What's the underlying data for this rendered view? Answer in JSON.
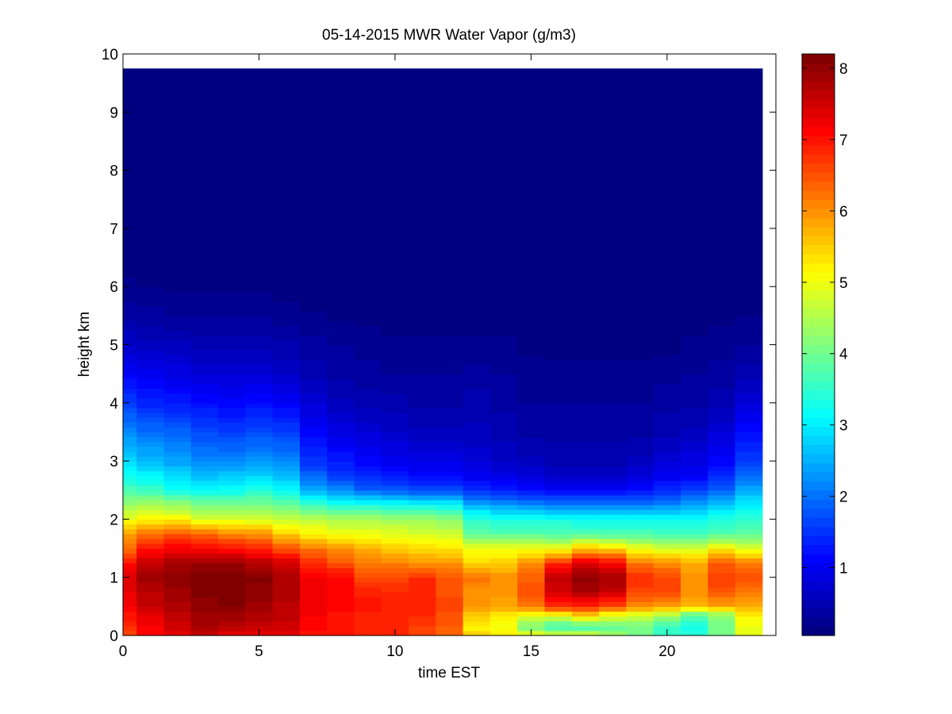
{
  "chart_data": {
    "type": "heatmap",
    "title": "05-14-2015 MWR Water Vapor (g/m3)",
    "xlabel": "time EST",
    "ylabel": "height km",
    "xlim": [
      0,
      24
    ],
    "ylim": [
      0,
      10
    ],
    "x_ticks": [
      0,
      5,
      10,
      15,
      20
    ],
    "y_ticks": [
      0,
      1,
      2,
      3,
      4,
      5,
      6,
      7,
      8,
      9,
      10
    ],
    "colormap": "jet",
    "clim": [
      0.05,
      8.2
    ],
    "colorbar_ticks": [
      1,
      2,
      3,
      4,
      5,
      6,
      7,
      8
    ],
    "data_extent": {
      "x": [
        0,
        23.5
      ],
      "y": [
        0,
        9.75
      ]
    },
    "x_centers": [
      0,
      1,
      2,
      3,
      4,
      5,
      6,
      7,
      8,
      9,
      10,
      11,
      12,
      13,
      14,
      15,
      16,
      17,
      18,
      19,
      20,
      21,
      22,
      23
    ],
    "profile_heights": [
      0,
      0.15,
      0.35,
      0.5,
      0.75,
      1.0,
      1.25,
      1.5,
      1.75,
      2.0,
      2.25,
      2.5,
      2.75,
      3.0,
      3.5,
      4.0,
      4.5,
      5.0,
      5.5,
      6.0,
      7.0,
      8.0,
      9.75
    ],
    "profile_values": [
      [
        6.5,
        7.0,
        7.3,
        7.5,
        7.3,
        7.2,
        7.3,
        7.0,
        7.0,
        6.8,
        6.8,
        6.5,
        6.3,
        5.5,
        5.3,
        5.2,
        5.0,
        5.0,
        4.5,
        4.0,
        3.5,
        3.5,
        4.0,
        5.0
      ],
      [
        6.8,
        7.2,
        7.5,
        7.8,
        7.7,
        7.6,
        7.5,
        7.1,
        7.0,
        6.8,
        6.8,
        6.7,
        6.4,
        5.2,
        5.0,
        4.0,
        3.5,
        3.6,
        3.8,
        4.0,
        3.5,
        3.3,
        4.0,
        5.0
      ],
      [
        7.0,
        7.3,
        7.6,
        7.9,
        7.9,
        7.8,
        7.6,
        7.2,
        7.0,
        6.9,
        6.9,
        6.8,
        6.5,
        5.5,
        5.3,
        5.0,
        5.0,
        5.5,
        5.0,
        4.8,
        4.5,
        3.8,
        4.2,
        5.2
      ],
      [
        7.2,
        7.6,
        7.8,
        8.0,
        8.1,
        7.9,
        7.6,
        7.3,
        7.1,
        7.0,
        6.9,
        6.8,
        6.6,
        6.0,
        5.8,
        6.2,
        6.8,
        6.8,
        6.5,
        6.0,
        5.8,
        5.6,
        5.8,
        5.8
      ],
      [
        7.3,
        7.7,
        7.9,
        8.1,
        8.2,
        8.0,
        7.8,
        7.3,
        7.1,
        6.9,
        6.8,
        6.8,
        6.5,
        6.0,
        6.0,
        6.5,
        7.5,
        7.8,
        7.6,
        6.6,
        6.6,
        6.0,
        6.5,
        6.2
      ],
      [
        7.4,
        7.9,
        8.0,
        8.2,
        8.2,
        8.1,
        7.8,
        7.2,
        7.1,
        6.6,
        6.6,
        6.8,
        6.5,
        6.2,
        6.0,
        6.4,
        7.6,
        8.0,
        7.8,
        6.8,
        6.6,
        6.0,
        6.6,
        6.5
      ],
      [
        7.0,
        7.6,
        7.8,
        7.9,
        7.9,
        7.7,
        7.5,
        6.8,
        6.5,
        6.2,
        6.1,
        6.0,
        6.0,
        5.4,
        5.5,
        6.0,
        6.8,
        7.4,
        7.2,
        6.2,
        6.0,
        5.8,
        6.4,
        6.2
      ],
      [
        6.3,
        7.0,
        7.2,
        7.1,
        7.0,
        6.9,
        6.5,
        6.2,
        6.0,
        5.7,
        5.5,
        5.4,
        5.3,
        5.0,
        5.0,
        5.0,
        5.0,
        5.6,
        5.4,
        5.0,
        4.8,
        4.8,
        5.2,
        4.8
      ],
      [
        5.9,
        6.3,
        6.5,
        6.4,
        6.1,
        6.0,
        5.5,
        5.2,
        5.0,
        5.0,
        4.9,
        4.8,
        4.8,
        3.8,
        3.8,
        3.8,
        3.7,
        3.7,
        3.7,
        3.7,
        3.6,
        3.6,
        3.8,
        3.9
      ],
      [
        5.0,
        5.2,
        5.2,
        4.8,
        4.8,
        4.8,
        4.7,
        4.6,
        4.5,
        4.5,
        4.4,
        4.4,
        4.2,
        3.5,
        3.4,
        3.3,
        3.3,
        3.2,
        3.2,
        3.2,
        3.2,
        3.2,
        3.4,
        3.5
      ],
      [
        4.3,
        4.4,
        4.3,
        4.1,
        4.1,
        4.1,
        3.9,
        3.6,
        3.4,
        3.3,
        3.3,
        3.2,
        3.1,
        2.5,
        2.3,
        2.2,
        2.1,
        2.1,
        2.1,
        2.1,
        2.2,
        2.4,
        2.6,
        3.0
      ],
      [
        3.7,
        3.6,
        3.3,
        3.2,
        3.2,
        3.4,
        3.2,
        2.5,
        2.2,
        1.9,
        1.8,
        1.7,
        1.7,
        1.4,
        1.3,
        1.2,
        1.1,
        1.1,
        1.1,
        1.2,
        1.4,
        1.6,
        1.9,
        2.5
      ],
      [
        3.2,
        3.1,
        2.8,
        2.6,
        2.7,
        2.8,
        2.6,
        1.9,
        1.6,
        1.4,
        1.3,
        1.2,
        1.2,
        1.0,
        0.9,
        0.8,
        0.7,
        0.7,
        0.7,
        0.8,
        1.0,
        1.1,
        1.4,
        1.9
      ],
      [
        2.8,
        2.6,
        2.4,
        2.2,
        2.2,
        2.3,
        2.2,
        1.5,
        1.3,
        1.1,
        1.0,
        0.9,
        0.9,
        0.8,
        0.7,
        0.6,
        0.5,
        0.5,
        0.5,
        0.6,
        0.8,
        0.9,
        1.1,
        1.6
      ],
      [
        2.2,
        2.0,
        1.9,
        1.7,
        1.6,
        1.7,
        1.6,
        1.1,
        0.9,
        0.8,
        0.7,
        0.6,
        0.6,
        0.6,
        0.5,
        0.4,
        0.4,
        0.4,
        0.4,
        0.4,
        0.5,
        0.6,
        0.8,
        1.2
      ],
      [
        1.6,
        1.4,
        1.3,
        1.2,
        1.1,
        1.2,
        1.1,
        0.8,
        0.6,
        0.5,
        0.5,
        0.4,
        0.4,
        0.5,
        0.4,
        0.3,
        0.3,
        0.3,
        0.3,
        0.3,
        0.4,
        0.4,
        0.5,
        0.8
      ],
      [
        1.1,
        1.0,
        0.9,
        0.8,
        0.8,
        0.8,
        0.7,
        0.5,
        0.4,
        0.35,
        0.3,
        0.3,
        0.3,
        0.35,
        0.3,
        0.25,
        0.2,
        0.2,
        0.2,
        0.2,
        0.25,
        0.3,
        0.35,
        0.5
      ],
      [
        0.7,
        0.6,
        0.6,
        0.5,
        0.5,
        0.5,
        0.45,
        0.35,
        0.3,
        0.25,
        0.2,
        0.2,
        0.2,
        0.2,
        0.2,
        0.15,
        0.15,
        0.15,
        0.15,
        0.15,
        0.15,
        0.2,
        0.25,
        0.3
      ],
      [
        0.4,
        0.35,
        0.3,
        0.3,
        0.3,
        0.3,
        0.25,
        0.2,
        0.15,
        0.15,
        0.12,
        0.12,
        0.12,
        0.12,
        0.12,
        0.1,
        0.1,
        0.1,
        0.1,
        0.1,
        0.1,
        0.12,
        0.15,
        0.18
      ],
      [
        0.2,
        0.18,
        0.15,
        0.15,
        0.15,
        0.15,
        0.12,
        0.1,
        0.08,
        0.08,
        0.08,
        0.08,
        0.08,
        0.08,
        0.08,
        0.07,
        0.07,
        0.07,
        0.07,
        0.07,
        0.07,
        0.08,
        0.08,
        0.1
      ],
      [
        0.08,
        0.07,
        0.07,
        0.07,
        0.06,
        0.06,
        0.06,
        0.05,
        0.05,
        0.05,
        0.05,
        0.05,
        0.05,
        0.05,
        0.05,
        0.05,
        0.05,
        0.05,
        0.05,
        0.05,
        0.05,
        0.05,
        0.05,
        0.05
      ],
      [
        0.05,
        0.05,
        0.05,
        0.05,
        0.05,
        0.05,
        0.05,
        0.05,
        0.05,
        0.05,
        0.05,
        0.05,
        0.05,
        0.05,
        0.05,
        0.05,
        0.05,
        0.05,
        0.05,
        0.05,
        0.05,
        0.05,
        0.05,
        0.05
      ],
      [
        0.05,
        0.05,
        0.05,
        0.05,
        0.05,
        0.05,
        0.05,
        0.05,
        0.05,
        0.05,
        0.05,
        0.05,
        0.05,
        0.05,
        0.05,
        0.05,
        0.05,
        0.05,
        0.05,
        0.05,
        0.05,
        0.05,
        0.05,
        0.05
      ]
    ]
  }
}
